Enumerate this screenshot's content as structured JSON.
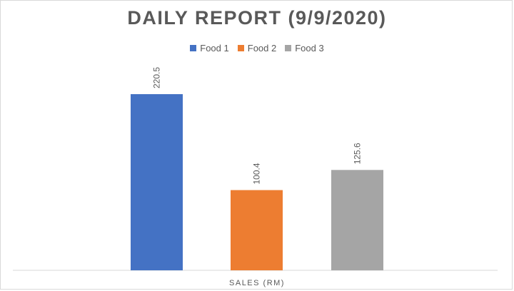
{
  "chart_data": {
    "type": "bar",
    "title": "DAILY REPORT (9/9/2020)",
    "xlabel": "SALES (RM)",
    "ylabel": "",
    "categories": [
      "SALES (RM)"
    ],
    "series": [
      {
        "name": "Food 1",
        "values": [
          220.5
        ],
        "color": "#4472c4",
        "label": "220.5"
      },
      {
        "name": "Food 2",
        "values": [
          100.4
        ],
        "color": "#ed7d31",
        "label": "100.4"
      },
      {
        "name": "Food 3",
        "values": [
          125.6
        ],
        "color": "#a5a5a5",
        "label": "125.6"
      }
    ],
    "ylim": [
      0,
      250
    ],
    "grid": false,
    "legend_position": "top",
    "data_labels": true
  }
}
